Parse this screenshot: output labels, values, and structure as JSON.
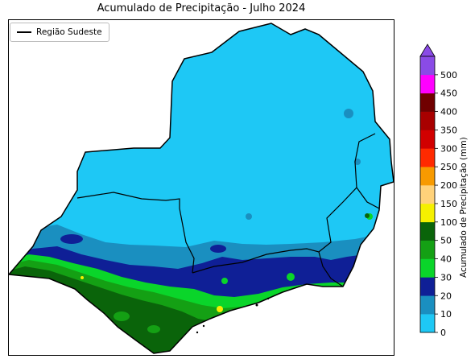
{
  "title": "Acumulado de Precipitação - Julho 2024",
  "legend": {
    "label": "Região Sudeste",
    "line_color": "#000000"
  },
  "colorbar": {
    "label": "Acumulado de Precipitação (mm)",
    "extend": "max",
    "ticks": [
      "0",
      "10",
      "20",
      "30",
      "40",
      "50",
      "100",
      "150",
      "200",
      "250",
      "300",
      "350",
      "400",
      "450",
      "500"
    ],
    "colors": [
      "#1ec8f5",
      "#1a8fc0",
      "#0f1f96",
      "#0ad52a",
      "#14a014",
      "#0a640a",
      "#f5f000",
      "#ffd27a",
      "#f79a00",
      "#ff2a00",
      "#d10000",
      "#a80000",
      "#700000",
      "#ff00ff",
      "#8a4be6"
    ]
  },
  "colors": {
    "background": "#ffffff",
    "ocean": "#ffffff",
    "precip_0_10": "#1ec8f5",
    "precip_10_20": "#1a8fc0",
    "precip_20_30": "#0f1f96",
    "precip_30_40": "#0ad52a",
    "precip_40_50": "#14a014",
    "precip_50_100": "#0a640a",
    "precip_100_150": "#f5f000"
  }
}
